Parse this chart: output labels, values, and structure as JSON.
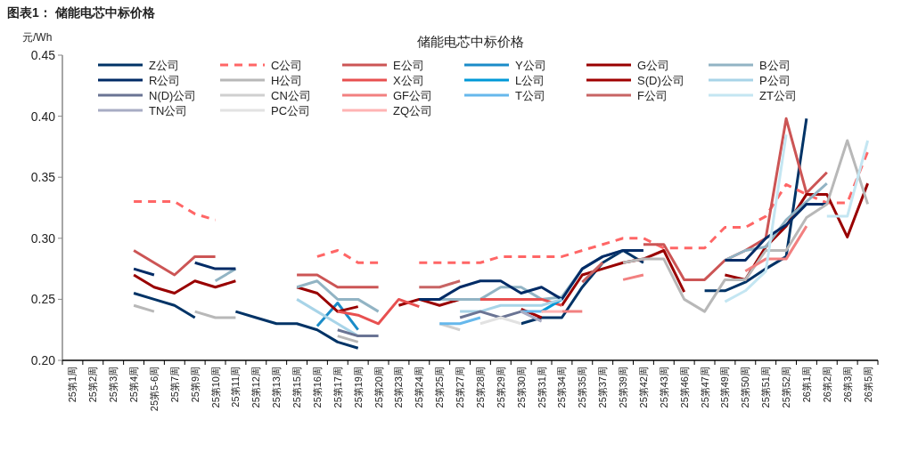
{
  "chart_data": {
    "type": "line",
    "title": "图表1：  储能电芯中标价格",
    "subtitle": "储能电芯中标价格",
    "ylabel": "元/Wh",
    "categories": [
      "25第1周",
      "25第2周",
      "25第3周",
      "25第4周",
      "25第5-6周",
      "25第7周",
      "25第9周",
      "25第10周",
      "25第11周",
      "25第12周",
      "25第13周",
      "25第15周",
      "25第16周",
      "25第17周",
      "25第19周",
      "25第20周",
      "25第23周",
      "25第24周",
      "25第25周",
      "25第27周",
      "25第28周",
      "25第29周",
      "25第30周",
      "25第31周",
      "25第34周",
      "25第35周",
      "25第37周",
      "25第39周",
      "25第42周",
      "25第43周",
      "25第46周",
      "25第47周",
      "25第49周",
      "25第50周",
      "25第51周",
      "25第52周",
      "26第1周",
      "26第2周",
      "26第3周",
      "26第5周"
    ],
    "ylim": [
      0.2,
      0.45
    ],
    "yticks": [
      {
        "value": 0.2,
        "label": "0.20"
      },
      {
        "value": 0.25,
        "label": "0.25"
      },
      {
        "value": 0.3,
        "label": "0.30"
      },
      {
        "value": 0.35,
        "label": "0.35"
      },
      {
        "value": 0.4,
        "label": "0.40"
      },
      {
        "value": 0.45,
        "label": "0.45"
      }
    ],
    "legend": "top",
    "marker": "none",
    "line_style": "solid",
    "series": [
      {
        "name": "Z公司",
        "color": "#003366",
        "values": [
          null,
          null,
          null,
          0.255,
          0.25,
          0.245,
          0.235,
          null,
          0.24,
          0.235,
          0.23,
          0.23,
          0.225,
          0.215,
          0.21,
          null,
          null,
          null,
          null,
          null,
          null,
          null,
          0.23,
          0.235,
          0.235,
          0.26,
          0.28,
          0.29,
          0.28,
          null,
          null,
          0.257,
          0.257,
          0.264,
          0.275,
          0.285,
          0.398,
          null,
          null,
          null
        ]
      },
      {
        "name": "C公司",
        "color": "#ff6666",
        "line_style": "dashed",
        "values": [
          null,
          null,
          null,
          0.33,
          0.33,
          0.33,
          0.32,
          0.315,
          null,
          null,
          null,
          null,
          0.285,
          0.29,
          0.28,
          0.28,
          null,
          0.28,
          0.28,
          0.28,
          0.28,
          0.285,
          0.285,
          0.285,
          0.285,
          0.29,
          0.295,
          0.3,
          0.3,
          0.292,
          0.292,
          0.292,
          0.309,
          0.309,
          0.318,
          0.344,
          0.336,
          0.329,
          0.329,
          0.371
        ]
      },
      {
        "name": "E公司",
        "color": "#cc5555",
        "values": [
          null,
          null,
          null,
          0.29,
          0.28,
          0.27,
          0.285,
          0.285,
          null,
          null,
          null,
          0.27,
          0.27,
          0.26,
          0.26,
          0.26,
          null,
          null,
          null,
          null,
          null,
          null,
          null,
          null,
          null,
          null,
          null,
          null,
          0.295,
          0.295,
          0.266,
          0.266,
          0.282,
          0.29,
          0.3,
          0.398,
          0.337,
          0.354,
          null,
          null
        ]
      },
      {
        "name": "Y公司",
        "color": "#1a8cc8",
        "values": [
          null,
          null,
          null,
          null,
          null,
          null,
          null,
          null,
          null,
          null,
          null,
          null,
          0.228,
          0.247,
          0.225,
          null,
          null,
          null,
          null,
          null,
          null,
          null,
          null,
          null,
          null,
          null,
          null,
          null,
          null,
          null,
          null,
          null,
          null,
          null,
          null,
          null,
          null,
          null,
          null,
          null
        ]
      },
      {
        "name": "G公司",
        "color": "#990000",
        "values": [
          null,
          null,
          null,
          0.27,
          0.26,
          0.255,
          0.265,
          0.26,
          0.265,
          null,
          null,
          0.26,
          0.255,
          0.24,
          0.244,
          null,
          0.245,
          0.25,
          0.245,
          0.25,
          0.25,
          0.25,
          null,
          null,
          0.245,
          0.27,
          0.275,
          0.28,
          0.283,
          0.29,
          0.256,
          null,
          0.27,
          0.266,
          0.293,
          0.31,
          0.336,
          0.336,
          0.301,
          0.345
        ]
      },
      {
        "name": "B公司",
        "color": "#92b4c4",
        "values": [
          null,
          null,
          null,
          null,
          null,
          null,
          null,
          0.265,
          0.275,
          null,
          null,
          0.26,
          0.265,
          0.25,
          0.25,
          0.24,
          null,
          null,
          0.25,
          0.25,
          0.25,
          0.26,
          0.26,
          0.25,
          0.252,
          0.275,
          0.285,
          0.29,
          null,
          null,
          null,
          null,
          0.282,
          0.29,
          0.293,
          0.315,
          0.33,
          0.345,
          null,
          null
        ]
      },
      {
        "name": "R公司",
        "color": "#002b66",
        "values": [
          null,
          null,
          null,
          0.275,
          0.27,
          null,
          0.28,
          0.275,
          0.275,
          null,
          null,
          null,
          null,
          null,
          null,
          null,
          null,
          0.25,
          0.25,
          0.26,
          0.265,
          0.265,
          0.255,
          0.26,
          0.25,
          0.275,
          0.285,
          0.29,
          0.29,
          null,
          null,
          null,
          0.282,
          0.282,
          0.3,
          0.311,
          0.328,
          0.328,
          null,
          null
        ]
      },
      {
        "name": "H公司",
        "color": "#b8b8b8",
        "values": [
          null,
          null,
          null,
          0.245,
          0.24,
          null,
          0.24,
          0.235,
          0.235,
          null,
          null,
          null,
          null,
          0.22,
          0.215,
          null,
          null,
          null,
          null,
          null,
          null,
          null,
          null,
          null,
          null,
          null,
          null,
          0.28,
          0.283,
          0.283,
          0.25,
          0.24,
          0.266,
          0.266,
          0.29,
          0.29,
          0.317,
          0.328,
          0.38,
          0.328
        ]
      },
      {
        "name": "X公司",
        "color": "#e85050",
        "values": [
          null,
          null,
          null,
          null,
          null,
          null,
          null,
          null,
          null,
          null,
          null,
          null,
          null,
          0.24,
          0.237,
          0.23,
          0.25,
          0.244,
          null,
          null,
          0.25,
          0.25,
          0.25,
          0.25,
          0.245,
          null,
          null,
          null,
          null,
          null,
          null,
          null,
          null,
          null,
          null,
          null,
          null,
          null,
          null,
          null
        ]
      },
      {
        "name": "L公司",
        "color": "#0099d8",
        "values": [
          null,
          null,
          null,
          null,
          null,
          null,
          null,
          null,
          null,
          null,
          null,
          null,
          null,
          null,
          null,
          null,
          null,
          null,
          null,
          null,
          null,
          null,
          null,
          0.24,
          0.25,
          null,
          null,
          null,
          null,
          null,
          null,
          null,
          null,
          null,
          null,
          null,
          null,
          null,
          null,
          null
        ]
      },
      {
        "name": "S(D)公司",
        "color": "#a00000",
        "values": [
          null,
          null,
          null,
          null,
          null,
          null,
          null,
          null,
          null,
          null,
          null,
          null,
          null,
          null,
          null,
          null,
          null,
          null,
          null,
          null,
          null,
          null,
          0.242,
          0.235,
          null,
          null,
          null,
          null,
          null,
          null,
          null,
          null,
          null,
          null,
          null,
          null,
          null,
          null,
          null,
          null
        ]
      },
      {
        "name": "P公司",
        "color": "#a8d4e8",
        "values": [
          null,
          null,
          null,
          null,
          null,
          null,
          null,
          null,
          null,
          null,
          null,
          0.25,
          0.24,
          0.23,
          0.22,
          null,
          null,
          null,
          null,
          0.24,
          0.24,
          0.245,
          0.245,
          0.245,
          0.25,
          null,
          null,
          null,
          null,
          null,
          null,
          null,
          null,
          null,
          null,
          null,
          null,
          null,
          null,
          null
        ]
      },
      {
        "name": "N(D)公司",
        "color": "#6a7494",
        "values": [
          null,
          null,
          null,
          null,
          null,
          null,
          null,
          null,
          null,
          null,
          null,
          null,
          null,
          0.225,
          0.22,
          0.22,
          null,
          null,
          null,
          0.235,
          0.24,
          0.235,
          0.24,
          null,
          null,
          null,
          null,
          null,
          null,
          null,
          null,
          null,
          null,
          null,
          null,
          null,
          null,
          null,
          null,
          null
        ]
      },
      {
        "name": "CN公司",
        "color": "#cfcfcf",
        "values": [
          null,
          null,
          null,
          null,
          null,
          null,
          null,
          null,
          null,
          null,
          null,
          null,
          null,
          null,
          null,
          null,
          null,
          null,
          0.23,
          0.225,
          null,
          null,
          null,
          null,
          null,
          null,
          null,
          null,
          null,
          null,
          null,
          null,
          null,
          null,
          null,
          null,
          null,
          null,
          null,
          null
        ]
      },
      {
        "name": "GF公司",
        "color": "#f28080",
        "values": [
          null,
          null,
          null,
          null,
          null,
          null,
          null,
          null,
          null,
          null,
          null,
          null,
          null,
          null,
          null,
          null,
          null,
          null,
          null,
          null,
          null,
          null,
          null,
          null,
          0.24,
          0.24,
          null,
          0.266,
          0.27,
          null,
          null,
          null,
          null,
          0.273,
          0.283,
          0.283,
          0.31,
          null,
          null,
          null
        ]
      },
      {
        "name": "T公司",
        "color": "#66b8ec",
        "values": [
          null,
          null,
          null,
          null,
          null,
          null,
          null,
          null,
          null,
          null,
          null,
          null,
          null,
          null,
          null,
          null,
          null,
          null,
          0.23,
          0.23,
          0.235,
          null,
          0.24,
          0.24,
          null,
          null,
          null,
          null,
          null,
          null,
          null,
          null,
          null,
          null,
          null,
          null,
          null,
          null,
          null,
          null
        ]
      },
      {
        "name": "F公司",
        "color": "#c86464",
        "values": [
          null,
          null,
          null,
          null,
          null,
          null,
          null,
          null,
          null,
          null,
          null,
          null,
          null,
          null,
          null,
          null,
          null,
          0.26,
          0.26,
          0.265,
          null,
          null,
          null,
          null,
          null,
          0.264,
          0.28,
          null,
          null,
          null,
          null,
          null,
          null,
          null,
          null,
          null,
          null,
          null,
          null,
          null
        ]
      },
      {
        "name": "ZT公司",
        "color": "#c4e6f2",
        "values": [
          null,
          null,
          null,
          null,
          null,
          null,
          null,
          null,
          null,
          null,
          null,
          null,
          null,
          null,
          null,
          null,
          null,
          null,
          null,
          null,
          null,
          null,
          null,
          null,
          null,
          null,
          null,
          null,
          null,
          null,
          null,
          null,
          0.248,
          0.257,
          0.273,
          0.385,
          null,
          0.318,
          0.318,
          0.38
        ]
      },
      {
        "name": "TN公司",
        "color": "#a8acc4",
        "values": [
          null,
          null,
          null,
          null,
          null,
          null,
          null,
          null,
          null,
          null,
          null,
          null,
          null,
          null,
          null,
          null,
          null,
          null,
          null,
          null,
          null,
          null,
          0.24,
          0.232,
          null,
          null,
          null,
          null,
          null,
          null,
          null,
          null,
          null,
          null,
          null,
          null,
          null,
          null,
          null,
          null
        ]
      },
      {
        "name": "PC公司",
        "color": "#e2e2e2",
        "values": [
          null,
          null,
          null,
          null,
          null,
          null,
          null,
          null,
          null,
          null,
          null,
          null,
          null,
          null,
          null,
          null,
          null,
          null,
          null,
          null,
          0.23,
          0.235,
          0.23,
          null,
          null,
          null,
          null,
          null,
          null,
          null,
          null,
          null,
          null,
          null,
          null,
          null,
          null,
          null,
          null,
          null
        ]
      },
      {
        "name": "ZQ公司",
        "color": "#ffb4b4",
        "values": [
          null,
          null,
          null,
          null,
          null,
          null,
          null,
          null,
          null,
          null,
          null,
          null,
          null,
          null,
          null,
          null,
          null,
          null,
          null,
          null,
          null,
          null,
          null,
          0.24,
          0.24,
          null,
          null,
          null,
          null,
          null,
          null,
          null,
          null,
          null,
          null,
          null,
          null,
          null,
          null,
          null
        ]
      }
    ]
  }
}
